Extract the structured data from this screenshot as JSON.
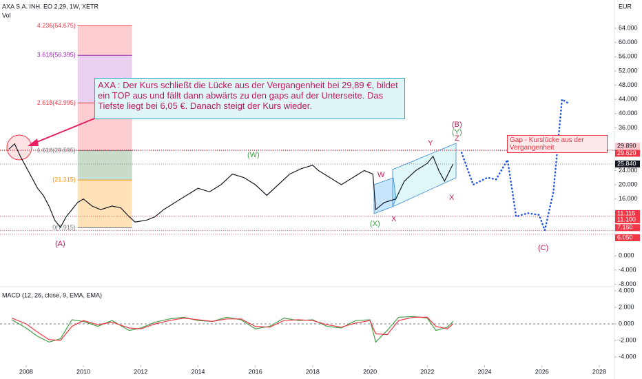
{
  "header": {
    "symbol": "AXA S.A. INH. EO 2,29, 1W, XETR",
    "volume": "Vol",
    "currency": "EUR"
  },
  "annotation": "AXA :  Der Kurs schließt die Lücke aus der Vergangenheit bei 29,89 €, bildet ein TOP aus und fällt dann abwärts zu den gaps auf der Unterseite. Das Tiefste liegt bei  6,05 €. Danach steigt der Kurs wieder.",
  "gap_note": "Gap - Kurslücke aus der Vergangenheit",
  "waves": [
    "(A)",
    "(W)",
    "(X)",
    "W",
    "X",
    "Y",
    "(B)",
    "(Y)",
    "Z",
    "X",
    "(C)"
  ],
  "fib_levels": [
    {
      "label": "4.236(64.675)",
      "value": 64.675
    },
    {
      "label": "3.618(56.395)",
      "value": 56.395
    },
    {
      "label": "2.618(42.995)",
      "value": 42.995
    },
    {
      "label": "1.618(29.595)",
      "value": 29.595
    },
    {
      "label": "(21.315)",
      "value": 21.315
    },
    {
      "label": "0(7.915)",
      "value": 7.915
    }
  ],
  "price_tags": [
    {
      "value": 29.89,
      "label": "29.890",
      "color": "#f7c6cb"
    },
    {
      "value": 29.62,
      "label": "29.620",
      "color": "#f23645"
    },
    {
      "value": 25.84,
      "label": "25.840",
      "color": "#131722"
    },
    {
      "value": 11.115,
      "label": "11.115",
      "color": "#f23645"
    },
    {
      "value": 11.1,
      "label": "11.100",
      "color": "#f23645"
    },
    {
      "value": 7.16,
      "label": "7.160",
      "color": "#f23645"
    },
    {
      "value": 6.05,
      "label": "6.050",
      "color": "#f23645"
    }
  ],
  "chart_data": [
    {
      "type": "line",
      "color": "#131722",
      "x": [
        2007.4,
        2007.6,
        2007.8,
        2008.0,
        2008.2,
        2008.4,
        2008.6,
        2008.8,
        2009.0,
        2009.2,
        2009.4,
        2009.6,
        2009.8,
        2010.0,
        2010.3,
        2010.6,
        2011.0,
        2011.3,
        2011.6,
        2011.8,
        2012.2,
        2012.5,
        2012.8,
        2013.2,
        2013.6,
        2014.0,
        2014.4,
        2014.8,
        2015.2,
        2015.6,
        2016.0,
        2016.4,
        2016.8,
        2017.2,
        2017.6,
        2018.0,
        2018.2,
        2018.6,
        2019.0,
        2019.4,
        2019.8,
        2020.1,
        2020.2,
        2020.5,
        2020.9,
        2021.2,
        2021.6,
        2022.0,
        2022.2,
        2022.4,
        2022.6,
        2022.9
      ],
      "values": [
        30,
        31.5,
        28,
        25,
        22,
        19,
        17,
        14,
        10,
        8,
        11,
        13,
        15,
        16,
        14,
        13,
        14,
        13.5,
        11,
        9.5,
        10,
        11,
        13,
        15,
        17,
        19,
        18,
        20,
        23,
        22,
        20,
        17,
        20,
        23,
        24.5,
        25.5,
        24,
        22,
        20,
        22,
        24,
        23,
        13,
        15,
        16,
        21,
        24,
        26,
        28,
        24,
        21,
        25.84
      ],
      "xlim": [
        2007.09,
        2028.53
      ],
      "xticks": [
        2008,
        2010,
        2012,
        2014,
        2016,
        2018,
        2020,
        2022,
        2024,
        2026,
        2028
      ],
      "ylim": [
        -8.48,
        71.95
      ],
      "yticks": [
        {
          "value": 64,
          "label": "64.000"
        },
        {
          "value": 60,
          "label": "60.000"
        },
        {
          "value": 56,
          "label": "56.000"
        },
        {
          "value": 52,
          "label": "52.000"
        },
        {
          "value": 48,
          "label": "48.000"
        },
        {
          "value": 44,
          "label": "44.000"
        },
        {
          "value": 40,
          "label": "40.000"
        },
        {
          "value": 36,
          "label": "36.000"
        },
        {
          "value": 24,
          "label": "24.000"
        },
        {
          "value": 20,
          "label": "20.000"
        },
        {
          "value": 16,
          "label": "16.000"
        },
        {
          "value": 0,
          "label": "0.000"
        },
        {
          "value": -4,
          "label": "-4.000"
        },
        {
          "value": -8,
          "label": "-8.000"
        }
      ]
    },
    {
      "type": "line",
      "color": "#1e53e5",
      "dotted": true,
      "x": [
        2023.2,
        2023.6,
        2024.1,
        2024.4,
        2024.8,
        2025.1,
        2025.5,
        2025.9,
        2026.1,
        2026.4,
        2026.7,
        2026.9
      ],
      "values": [
        29,
        20,
        22,
        21.5,
        27,
        11,
        12,
        11.5,
        7.2,
        18,
        44,
        43
      ]
    },
    {
      "type": "line",
      "title": "MACD (12, 26, close, 9, EMA, EMA)",
      "ylim": [
        -5,
        4.17
      ],
      "yticks": [
        {
          "value": 4,
          "label": "4.000"
        },
        {
          "value": 2,
          "label": "2.000"
        },
        {
          "value": 0,
          "label": "0.000"
        },
        {
          "value": -2,
          "label": "-2.000"
        },
        {
          "value": -4,
          "label": "-4.000"
        }
      ],
      "series": [
        {
          "color": "#43a047",
          "x": [
            2007.5,
            2008.0,
            2008.4,
            2008.8,
            2009.2,
            2009.6,
            2010.0,
            2010.5,
            2011.0,
            2011.6,
            2012.0,
            2012.5,
            2013.0,
            2013.5,
            2014.0,
            2014.5,
            2015.0,
            2015.5,
            2016.0,
            2016.5,
            2017.0,
            2017.5,
            2018.0,
            2018.5,
            2019.0,
            2019.5,
            2020.0,
            2020.2,
            2020.6,
            2021.0,
            2021.5,
            2022.0,
            2022.3,
            2022.7,
            2022.9
          ],
          "values": [
            0.5,
            -0.5,
            -1.5,
            -2.2,
            -1.8,
            0.5,
            0.3,
            -0.3,
            0.4,
            -0.8,
            -0.5,
            0.2,
            0.6,
            0.8,
            0.4,
            0.3,
            0.8,
            0.5,
            -0.6,
            -0.3,
            0.7,
            0.4,
            0.5,
            -0.3,
            -0.5,
            0.4,
            0.5,
            -2.2,
            -0.8,
            0.8,
            0.9,
            0.7,
            -0.8,
            -0.4,
            0.3
          ]
        },
        {
          "color": "#f23645",
          "x": [
            2007.5,
            2008.0,
            2008.4,
            2008.8,
            2009.2,
            2009.6,
            2010.0,
            2010.5,
            2011.0,
            2011.6,
            2012.0,
            2012.5,
            2013.0,
            2013.5,
            2014.0,
            2014.5,
            2015.0,
            2015.5,
            2016.0,
            2016.5,
            2017.0,
            2017.5,
            2018.0,
            2018.5,
            2019.0,
            2019.5,
            2020.0,
            2020.2,
            2020.6,
            2021.0,
            2021.5,
            2022.0,
            2022.3,
            2022.7,
            2022.9
          ],
          "values": [
            0.7,
            0,
            -1,
            -1.9,
            -2,
            -0.3,
            0.4,
            -0.1,
            0.2,
            -0.5,
            -0.6,
            0,
            0.4,
            0.7,
            0.5,
            0.3,
            0.6,
            0.6,
            -0.3,
            -0.4,
            0.4,
            0.5,
            0.4,
            -0.1,
            -0.4,
            0.1,
            0.4,
            -1.2,
            -1.3,
            0.4,
            0.8,
            0.8,
            -0.3,
            -0.6,
            0
          ]
        }
      ]
    }
  ]
}
